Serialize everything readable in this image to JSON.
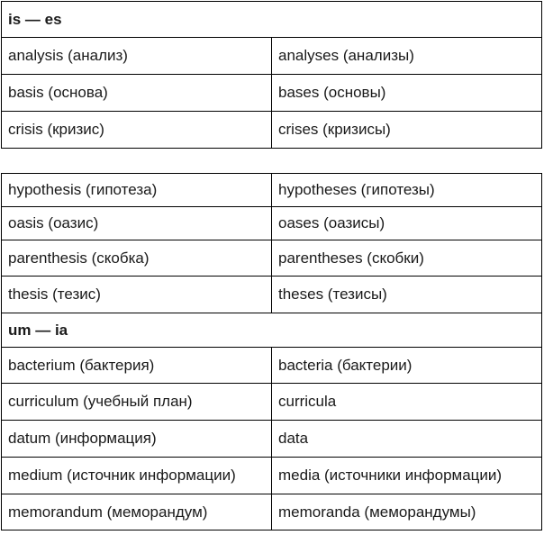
{
  "table1": {
    "header": "is — es",
    "rows": [
      {
        "singular": "analysis (анализ)",
        "plural": "analyses (анализы)"
      },
      {
        "singular": "basis (основа)",
        "plural": "bases (основы)"
      },
      {
        "singular": "crisis (кризис)",
        "plural": "crises (кризисы)"
      }
    ]
  },
  "table2": {
    "rows_top": [
      {
        "singular": "hypothesis (гипотеза)",
        "plural": "hypotheses (гипотезы)"
      },
      {
        "singular": "oasis (оазис)",
        "plural": "oases (оазисы)"
      },
      {
        "singular": "parenthesis (скобка)",
        "plural": "parentheses (скобки)"
      },
      {
        "singular": "thesis (тезис)",
        "plural": "theses (тезисы)"
      }
    ],
    "header": "um — ia",
    "rows_bottom": [
      {
        "singular": "bacterium (бактерия)",
        "plural": "bacteria (бактерии)"
      },
      {
        "singular": "curriculum (учебный план)",
        "plural": "curricula"
      },
      {
        "singular": "datum (информация)",
        "plural": "data"
      },
      {
        "singular": "medium (источник информации)",
        "plural": "media (источники информации)"
      },
      {
        "singular": "memorandum (меморандум)",
        "plural": "memoranda (меморандумы)"
      }
    ]
  }
}
